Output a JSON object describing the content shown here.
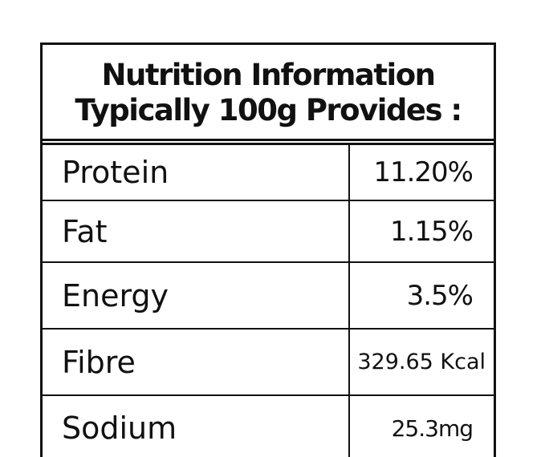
{
  "header": {
    "title": [
      "Nutrition Information",
      "Typically 100g Provides :"
    ]
  },
  "table": {
    "rows": [
      [
        "Protein",
        "11.20%"
      ],
      [
        "Fat",
        "1.15%"
      ],
      [
        "Energy",
        "3.5%"
      ],
      [
        "Fibre",
        "329.65 Kcal"
      ],
      [
        "Sodium",
        "25.3mg"
      ]
    ]
  }
}
